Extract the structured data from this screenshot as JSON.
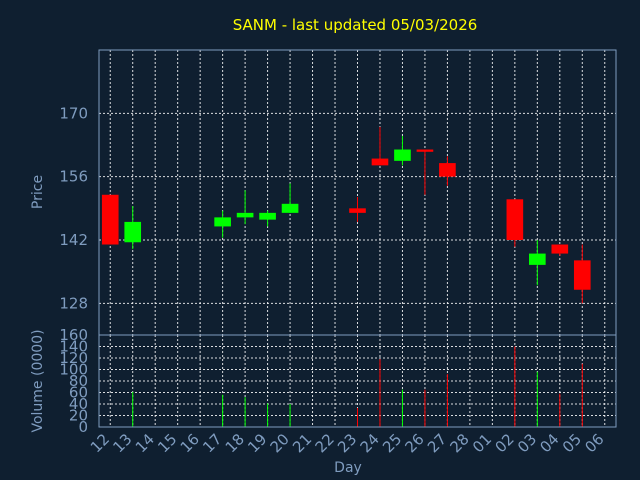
{
  "chart_data": {
    "type": "candlestick",
    "title": "SANM - last updated 05/03/2026",
    "xlabel": "Day",
    "price_ylabel": "Price",
    "volume_ylabel": "Volume (0000)",
    "x_ticks": [
      "12",
      "13",
      "14",
      "15",
      "16",
      "17",
      "18",
      "19",
      "20",
      "21",
      "22",
      "23",
      "24",
      "25",
      "26",
      "27",
      "28",
      "01",
      "02",
      "03",
      "04",
      "05",
      "06"
    ],
    "price_ticks": [
      128,
      142,
      156,
      170
    ],
    "price_ylim": [
      121,
      184
    ],
    "volume_ticks": [
      0,
      20,
      40,
      60,
      80,
      100,
      120,
      140,
      160
    ],
    "volume_ylim": [
      0,
      160
    ],
    "grid": true,
    "colors": {
      "background": "#0f1f30",
      "axes": "#7f9cbf",
      "title": "#ffff00",
      "tick_text": "#7f9cbf",
      "grid": "#ffffff",
      "up": "#00ff00",
      "down": "#ff0000"
    },
    "candles": [
      {
        "x": "12",
        "open": 152.0,
        "close": 141.0,
        "high": 152.0,
        "low": 141.0,
        "volume": 0
      },
      {
        "x": "13",
        "open": 141.5,
        "close": 146.0,
        "high": 149.5,
        "low": 140.0,
        "volume": 61
      },
      {
        "x": "17",
        "open": 145.0,
        "close": 147.0,
        "high": 148.5,
        "low": 142.5,
        "volume": 56
      },
      {
        "x": "18",
        "open": 147.0,
        "close": 148.0,
        "high": 153.0,
        "low": 145.5,
        "volume": 52
      },
      {
        "x": "19",
        "open": 146.5,
        "close": 148.0,
        "high": 148.5,
        "low": 145.0,
        "volume": 41
      },
      {
        "x": "20",
        "open": 148.0,
        "close": 150.0,
        "high": 154.5,
        "low": 148.0,
        "volume": 40
      },
      {
        "x": "23",
        "open": 149.0,
        "close": 148.0,
        "high": 151.5,
        "low": 146.0,
        "volume": 33
      },
      {
        "x": "24",
        "open": 160.0,
        "close": 158.5,
        "high": 167.0,
        "low": 158.5,
        "volume": 118
      },
      {
        "x": "25",
        "open": 159.5,
        "close": 162.0,
        "high": 165.0,
        "low": 158.5,
        "volume": 65
      },
      {
        "x": "26",
        "open": 162.0,
        "close": 161.5,
        "high": 162.0,
        "low": 152.0,
        "volume": 65
      },
      {
        "x": "27",
        "open": 159.0,
        "close": 156.0,
        "high": 160.5,
        "low": 154.0,
        "volume": 92
      },
      {
        "x": "02",
        "open": 151.0,
        "close": 142.0,
        "high": 151.0,
        "low": 140.5,
        "volume": 140
      },
      {
        "x": "03",
        "open": 136.5,
        "close": 139.0,
        "high": 142.0,
        "low": 132.0,
        "volume": 96
      },
      {
        "x": "04",
        "open": 141.0,
        "close": 139.0,
        "high": 141.0,
        "low": 138.5,
        "volume": 58
      },
      {
        "x": "05",
        "open": 137.5,
        "close": 131.0,
        "high": 141.0,
        "low": 128.0,
        "volume": 110
      }
    ]
  }
}
